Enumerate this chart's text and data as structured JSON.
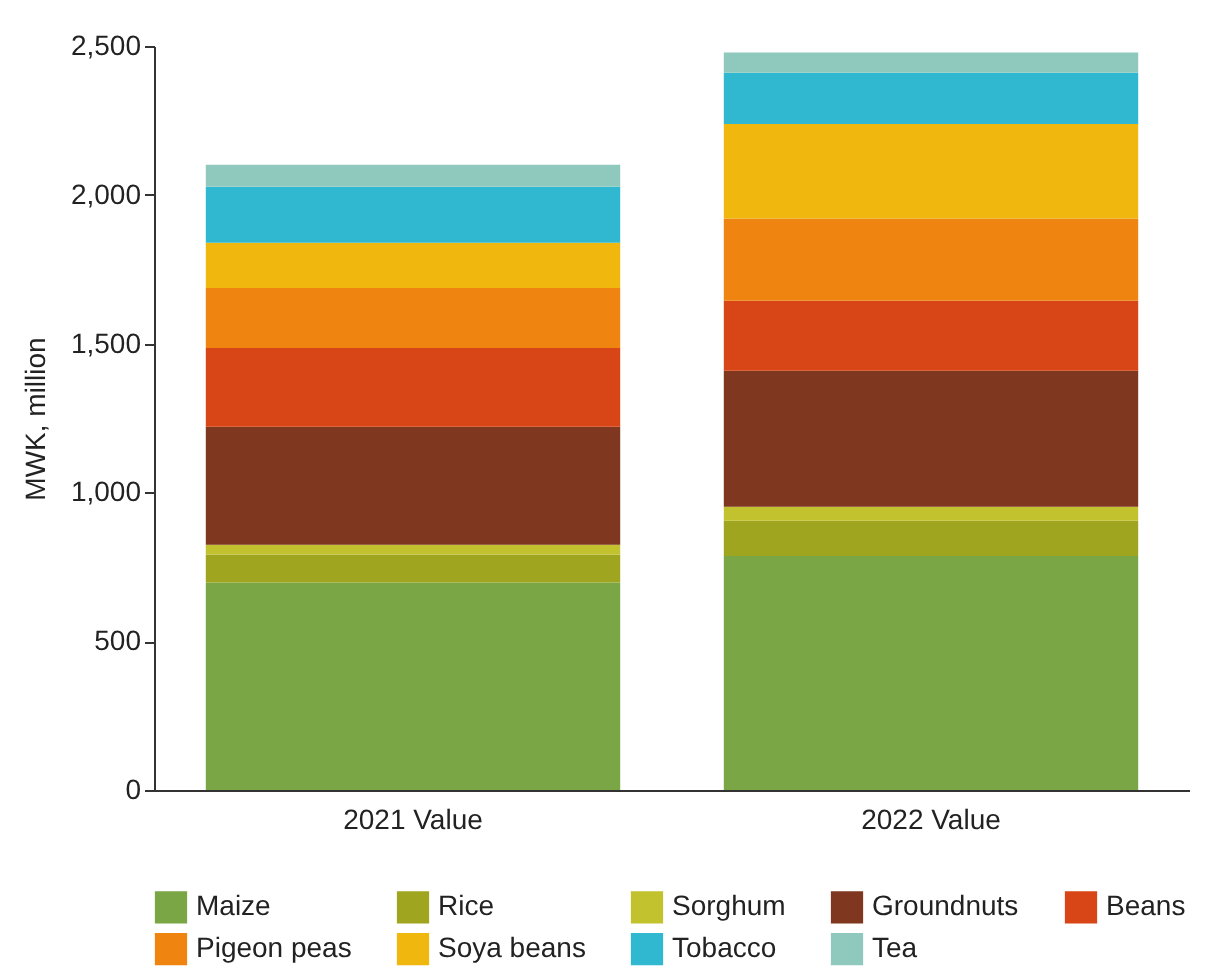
{
  "chart_data": {
    "type": "bar",
    "stacked": true,
    "ylabel": "MWK, million",
    "categories": [
      "2021 Value",
      "2022 Value"
    ],
    "ylim": [
      0,
      2500
    ],
    "yticks": [
      {
        "value": 0,
        "label": "0"
      },
      {
        "value": 500,
        "label": "500"
      },
      {
        "value": 1000,
        "label": "1,000"
      },
      {
        "value": 1500,
        "label": "1,500"
      },
      {
        "value": 2000,
        "label": "2,000"
      },
      {
        "value": 2500,
        "label": "2,500"
      }
    ],
    "grid": false,
    "legend": "bottom",
    "series": [
      {
        "name": "Maize",
        "color": "#7aa646",
        "values": [
          697,
          786
        ]
      },
      {
        "name": "Rice",
        "color": "#a0a520",
        "values": [
          94,
          119
        ]
      },
      {
        "name": "Sorghum",
        "color": "#c2c22f",
        "values": [
          33,
          47
        ]
      },
      {
        "name": "Groundnuts",
        "color": "#7f3720",
        "values": [
          397,
          457
        ]
      },
      {
        "name": "Beans",
        "color": "#d84516",
        "values": [
          264,
          235
        ]
      },
      {
        "name": "Pigeon peas",
        "color": "#ef8510",
        "values": [
          202,
          276
        ]
      },
      {
        "name": "Soya beans",
        "color": "#f0b80f",
        "values": [
          152,
          318
        ]
      },
      {
        "name": "Tobacco",
        "color": "#2fb8d0",
        "values": [
          188,
          172
        ]
      },
      {
        "name": "Tea",
        "color": "#8fc9bd",
        "values": [
          74,
          68
        ]
      }
    ]
  }
}
